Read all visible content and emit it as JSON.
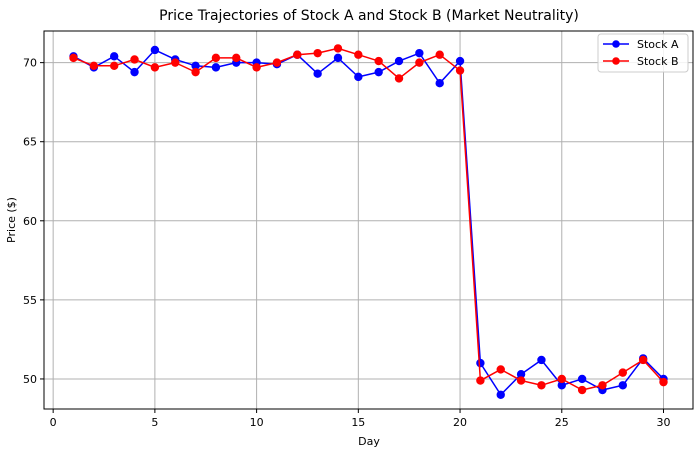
{
  "chart_data": {
    "type": "line",
    "title": "Price Trajectories of Stock A and Stock B (Market Neutrality)",
    "xlabel": "Day",
    "ylabel": "Price ($)",
    "xlim": [
      -0.45,
      31.45
    ],
    "ylim": [
      48.1,
      72.0
    ],
    "x_ticks": [
      0,
      5,
      10,
      15,
      20,
      25,
      30
    ],
    "y_ticks": [
      50,
      55,
      60,
      65,
      70
    ],
    "grid": true,
    "legend_position": "top-right",
    "x": [
      1,
      2,
      3,
      4,
      5,
      6,
      7,
      8,
      9,
      10,
      11,
      12,
      13,
      14,
      15,
      16,
      17,
      18,
      19,
      20,
      21,
      22,
      23,
      24,
      25,
      26,
      27,
      28,
      29,
      30
    ],
    "series": [
      {
        "name": "Stock A",
        "color": "#0000ff",
        "values": [
          70.4,
          69.7,
          70.4,
          69.4,
          70.8,
          70.2,
          69.8,
          69.7,
          70.0,
          70.0,
          69.9,
          70.5,
          69.3,
          70.3,
          69.1,
          69.4,
          70.1,
          70.6,
          68.7,
          70.1,
          51.0,
          49.0,
          50.3,
          51.2,
          49.6,
          50.0,
          49.3,
          49.6,
          51.3,
          50.0
        ]
      },
      {
        "name": "Stock B",
        "color": "#ff0000",
        "values": [
          70.3,
          69.8,
          69.8,
          70.2,
          69.7,
          70.0,
          69.4,
          70.3,
          70.3,
          69.7,
          70.0,
          70.5,
          70.6,
          70.9,
          70.5,
          70.1,
          69.0,
          70.0,
          70.5,
          69.5,
          49.9,
          50.6,
          49.9,
          49.6,
          50.0,
          49.3,
          49.6,
          50.4,
          51.2,
          49.8
        ]
      }
    ]
  }
}
